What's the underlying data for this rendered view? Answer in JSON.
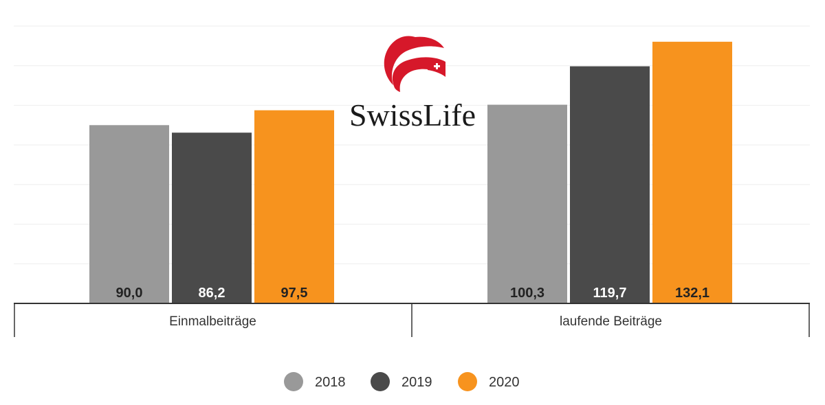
{
  "chart_data": {
    "type": "bar",
    "categories": [
      "Einmalbeiträge",
      "laufende Beiträge"
    ],
    "series": [
      {
        "name": "2018",
        "values": [
          90.0,
          100.3
        ],
        "labels": [
          "90,0",
          "100,3"
        ],
        "color": "#999999",
        "label_color": "#222222"
      },
      {
        "name": "2019",
        "values": [
          86.2,
          119.7
        ],
        "labels": [
          "86,2",
          "119,7"
        ],
        "color": "#4a4a4a",
        "label_color": "#ffffff"
      },
      {
        "name": "2020",
        "values": [
          97.5,
          132.1
        ],
        "labels": [
          "97,5",
          "132,1"
        ],
        "color": "#f7931e",
        "label_color": "#222222"
      }
    ],
    "ylim": [
      0,
      140
    ],
    "grid": true,
    "legend_position": "bottom-center"
  },
  "logo": {
    "text": "SwissLife",
    "brand_color": "#d6182a"
  }
}
